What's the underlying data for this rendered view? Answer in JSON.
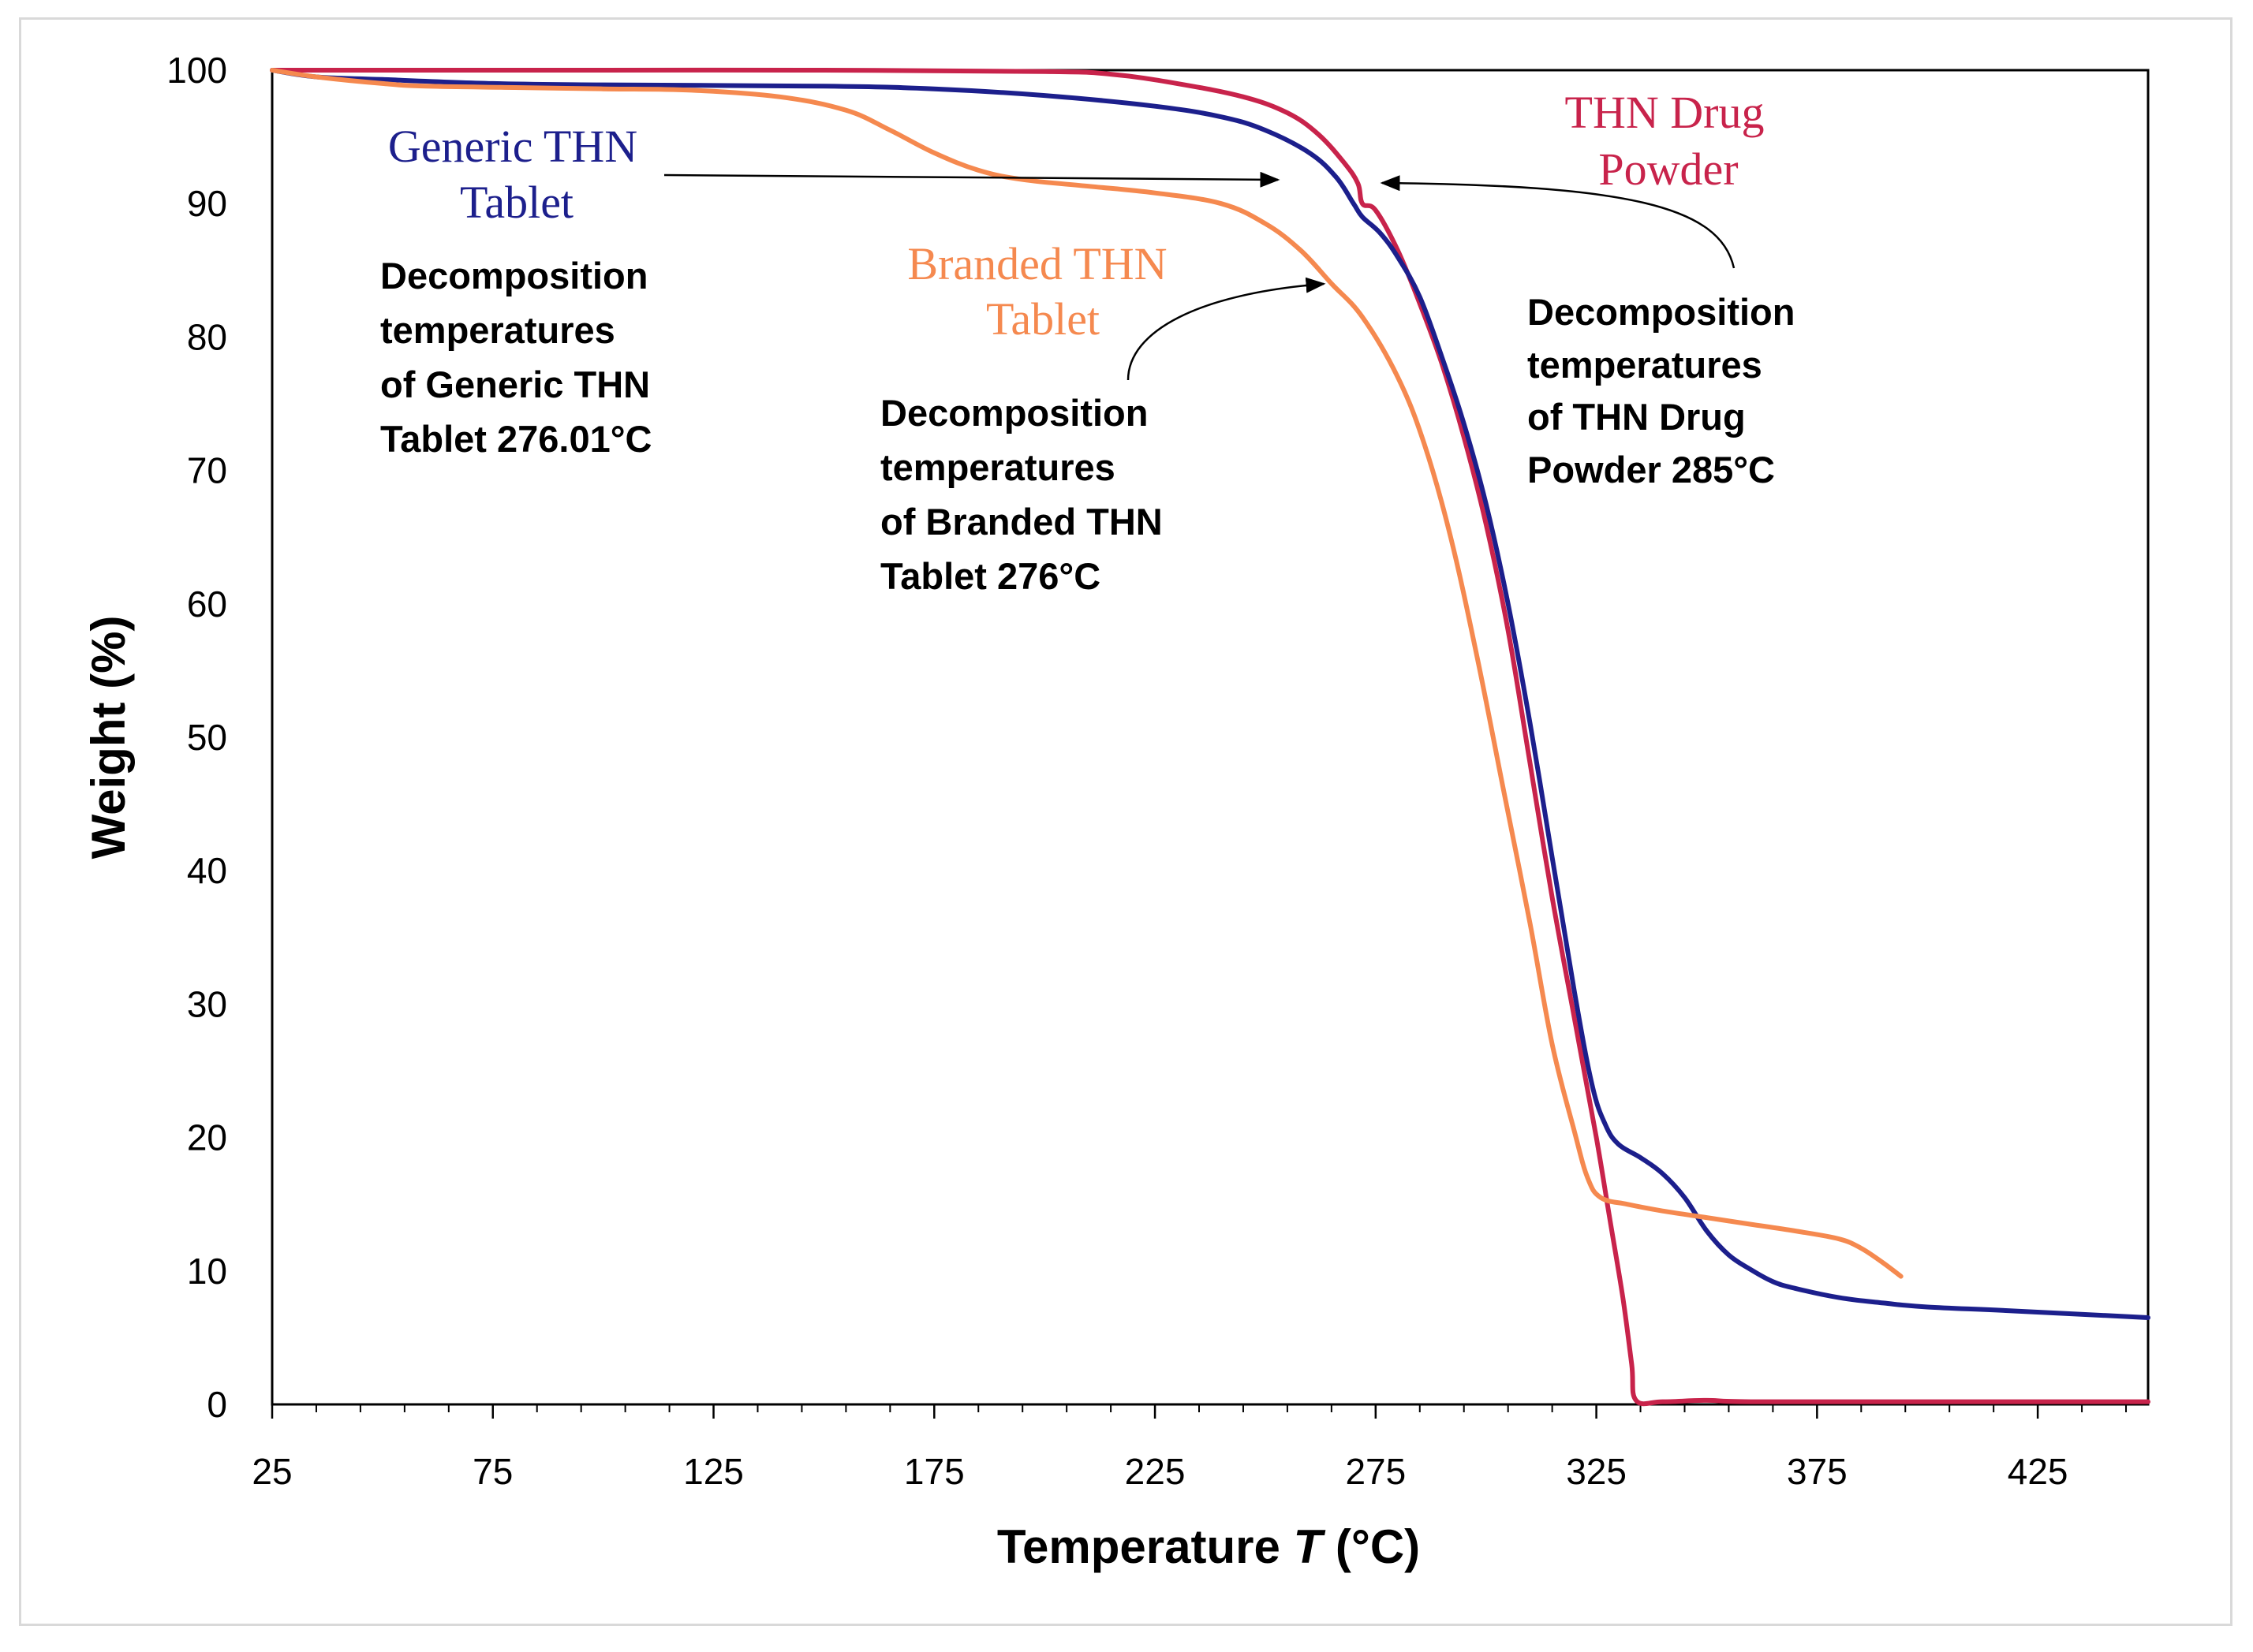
{
  "chart_data": {
    "type": "line",
    "xlabel": "Temperature T (°C)",
    "xlabel_parts": [
      "Temperature ",
      "T",
      " (°C)"
    ],
    "ylabel": "Weight (%)",
    "xlim": [
      25,
      450
    ],
    "ylim": [
      0,
      100
    ],
    "x_ticks": [
      25,
      75,
      125,
      175,
      225,
      275,
      325,
      375,
      425
    ],
    "y_ticks": [
      0,
      10,
      20,
      30,
      40,
      50,
      60,
      70,
      80,
      90,
      100
    ],
    "grid": false,
    "legend": "none",
    "series": [
      {
        "name": "THN Drug Powder",
        "label_lines": [
          "THN Drug",
          "Powder"
        ],
        "color": "#c8234b",
        "points": [
          [
            25,
            100
          ],
          [
            50,
            100
          ],
          [
            100,
            100
          ],
          [
            150,
            100
          ],
          [
            200,
            99.9
          ],
          [
            215,
            99.7
          ],
          [
            230,
            99
          ],
          [
            245,
            98
          ],
          [
            255,
            96.8
          ],
          [
            262,
            95.2
          ],
          [
            268,
            93
          ],
          [
            271,
            91.5
          ],
          [
            272,
            90
          ],
          [
            275,
            89.5
          ],
          [
            280,
            86.5
          ],
          [
            285,
            82.5
          ],
          [
            290,
            78
          ],
          [
            295,
            72.5
          ],
          [
            300,
            66
          ],
          [
            305,
            58
          ],
          [
            310,
            48
          ],
          [
            315,
            38
          ],
          [
            320,
            29
          ],
          [
            325,
            20
          ],
          [
            328,
            14
          ],
          [
            331,
            8
          ],
          [
            333,
            3
          ],
          [
            334,
            0.3
          ],
          [
            340,
            0.2
          ],
          [
            350,
            0.3
          ],
          [
            360,
            0.2
          ],
          [
            400,
            0.2
          ],
          [
            450,
            0.2
          ]
        ]
      },
      {
        "name": "Generic THN Tablet",
        "label_lines": [
          "Generic THN",
          "Tablet"
        ],
        "color": "#1c1f8c",
        "points": [
          [
            25,
            100
          ],
          [
            35,
            99.5
          ],
          [
            50,
            99.3
          ],
          [
            75,
            99
          ],
          [
            100,
            98.9
          ],
          [
            150,
            98.8
          ],
          [
            175,
            98.6
          ],
          [
            200,
            98.1
          ],
          [
            225,
            97.3
          ],
          [
            240,
            96.5
          ],
          [
            250,
            95.5
          ],
          [
            260,
            93.8
          ],
          [
            266,
            92
          ],
          [
            270,
            90
          ],
          [
            272,
            89
          ],
          [
            276,
            87.8
          ],
          [
            280,
            86
          ],
          [
            285,
            83
          ],
          [
            290,
            78.5
          ],
          [
            295,
            73.5
          ],
          [
            300,
            67.5
          ],
          [
            305,
            60
          ],
          [
            310,
            51
          ],
          [
            315,
            41
          ],
          [
            320,
            31
          ],
          [
            324,
            24
          ],
          [
            327,
            21
          ],
          [
            330,
            19.5
          ],
          [
            335,
            18.5
          ],
          [
            340,
            17.3
          ],
          [
            345,
            15.5
          ],
          [
            350,
            13
          ],
          [
            355,
            11.2
          ],
          [
            360,
            10.1
          ],
          [
            365,
            9.2
          ],
          [
            370,
            8.7
          ],
          [
            380,
            8
          ],
          [
            390,
            7.6
          ],
          [
            400,
            7.3
          ],
          [
            420,
            7
          ],
          [
            450,
            6.5
          ]
        ]
      },
      {
        "name": "Branded THN Tablet",
        "label_lines": [
          "Branded THN",
          "Tablet"
        ],
        "color": "#f5894f",
        "points": [
          [
            25,
            100
          ],
          [
            35,
            99.5
          ],
          [
            50,
            99
          ],
          [
            60,
            98.8
          ],
          [
            80,
            98.7
          ],
          [
            100,
            98.6
          ],
          [
            120,
            98.5
          ],
          [
            140,
            98
          ],
          [
            155,
            97
          ],
          [
            165,
            95.5
          ],
          [
            175,
            93.8
          ],
          [
            185,
            92.5
          ],
          [
            195,
            91.8
          ],
          [
            210,
            91.3
          ],
          [
            225,
            90.8
          ],
          [
            240,
            90
          ],
          [
            250,
            88.5
          ],
          [
            258,
            86.5
          ],
          [
            265,
            84
          ],
          [
            272,
            81.5
          ],
          [
            280,
            77
          ],
          [
            286,
            72
          ],
          [
            292,
            65
          ],
          [
            298,
            56
          ],
          [
            304,
            46
          ],
          [
            310,
            36
          ],
          [
            315,
            27
          ],
          [
            320,
            20.5
          ],
          [
            323,
            17
          ],
          [
            326,
            15.5
          ],
          [
            332,
            15
          ],
          [
            340,
            14.5
          ],
          [
            350,
            14
          ],
          [
            360,
            13.5
          ],
          [
            370,
            13
          ],
          [
            380,
            12.4
          ],
          [
            385,
            11.7
          ],
          [
            390,
            10.6
          ],
          [
            394,
            9.6
          ]
        ]
      }
    ],
    "annotations": [
      {
        "lines": [
          "Decomposition",
          "temperatures",
          " of Generic THN",
          "Tablet 276.01°C"
        ]
      },
      {
        "lines": [
          "Decomposition",
          "temperatures",
          " of Branded THN",
          "Tablet 276°C"
        ]
      },
      {
        "lines": [
          "Decomposition",
          "temperatures",
          " of THN Drug",
          " Powder  285°C"
        ]
      }
    ]
  }
}
